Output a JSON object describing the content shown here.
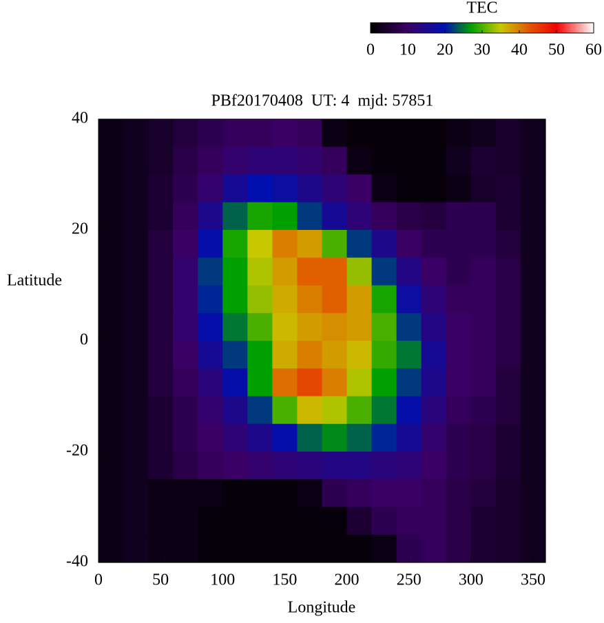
{
  "chart_data": {
    "type": "heatmap",
    "title": "PBf20170408  UT: 4  mjd: 57851",
    "x_label": "Longitude",
    "y_label": "Latitude",
    "xlim": [
      0,
      360
    ],
    "ylim": [
      -40,
      40
    ],
    "xticks": [
      0,
      50,
      100,
      150,
      200,
      250,
      300,
      350
    ],
    "yticks": [
      -40,
      -20,
      0,
      20,
      40
    ],
    "x": [
      10,
      30,
      50,
      70,
      90,
      110,
      130,
      150,
      170,
      190,
      210,
      230,
      250,
      270,
      290,
      310,
      330,
      350
    ],
    "y": [
      37.5,
      32.5,
      27.5,
      22.5,
      17.5,
      12.5,
      7.5,
      2.5,
      -2.5,
      -7.5,
      -12.5,
      -17.5,
      -22.5,
      -27.5,
      -32.5,
      -37.5
    ],
    "z": [
      [
        2,
        3,
        4,
        6,
        8,
        9,
        9,
        10,
        9,
        2,
        1,
        1,
        1,
        1,
        2,
        3,
        4,
        3
      ],
      [
        2,
        3,
        4,
        7,
        9,
        11,
        12,
        12,
        11,
        9,
        2,
        1,
        1,
        1,
        3,
        5,
        4,
        3
      ],
      [
        2,
        3,
        5,
        8,
        11,
        16,
        20,
        18,
        15,
        12,
        10,
        2,
        1,
        1,
        2,
        4,
        5,
        3
      ],
      [
        2,
        3,
        5,
        9,
        15,
        24,
        28,
        27,
        22,
        16,
        12,
        9,
        7,
        6,
        8,
        8,
        5,
        3
      ],
      [
        2,
        3,
        6,
        10,
        19,
        28,
        35,
        40,
        38,
        30,
        22,
        15,
        10,
        8,
        8,
        8,
        6,
        3
      ],
      [
        2,
        3,
        6,
        11,
        22,
        27,
        34,
        38,
        42,
        42,
        33,
        22,
        14,
        10,
        8,
        9,
        7,
        3
      ],
      [
        2,
        3,
        6,
        11,
        21,
        27,
        33,
        37,
        40,
        42,
        38,
        28,
        18,
        12,
        9,
        9,
        7,
        3
      ],
      [
        2,
        3,
        6,
        11,
        19,
        25,
        30,
        36,
        38,
        39,
        38,
        30,
        22,
        14,
        10,
        9,
        7,
        3
      ],
      [
        2,
        3,
        6,
        10,
        16,
        22,
        27,
        37,
        40,
        38,
        36,
        29,
        25,
        16,
        10,
        9,
        7,
        3
      ],
      [
        2,
        3,
        6,
        9,
        13,
        19,
        27,
        41,
        44,
        40,
        34,
        27,
        22,
        15,
        10,
        9,
        6,
        3
      ],
      [
        2,
        3,
        5,
        8,
        11,
        15,
        22,
        30,
        36,
        34,
        30,
        25,
        19,
        13,
        9,
        8,
        6,
        3
      ],
      [
        2,
        3,
        5,
        8,
        10,
        12,
        15,
        19,
        24,
        26,
        24,
        21,
        16,
        11,
        8,
        7,
        5,
        3
      ],
      [
        2,
        3,
        5,
        7,
        9,
        10,
        11,
        12,
        13,
        14,
        14,
        13,
        12,
        10,
        8,
        7,
        5,
        3
      ],
      [
        2,
        3,
        2,
        2,
        2,
        1,
        1,
        1,
        2,
        8,
        9,
        10,
        10,
        9,
        7,
        6,
        4,
        3
      ],
      [
        2,
        3,
        2,
        2,
        1,
        1,
        1,
        1,
        1,
        1,
        5,
        8,
        9,
        9,
        7,
        5,
        4,
        3
      ],
      [
        2,
        3,
        2,
        2,
        1,
        1,
        1,
        1,
        1,
        1,
        1,
        2,
        8,
        9,
        7,
        5,
        4,
        3
      ]
    ],
    "colorbar_label": "TEC",
    "clim": [
      0,
      60
    ],
    "colorbar_ticks": [
      0,
      10,
      20,
      30,
      40,
      50,
      60
    ],
    "colorscale": [
      {
        "value": 0,
        "color": "#000000"
      },
      {
        "value": 10,
        "color": "#3a0066"
      },
      {
        "value": 20,
        "color": "#0010b0"
      },
      {
        "value": 27,
        "color": "#00a000"
      },
      {
        "value": 35,
        "color": "#c8c800"
      },
      {
        "value": 42,
        "color": "#e06000"
      },
      {
        "value": 50,
        "color": "#f00000"
      },
      {
        "value": 60,
        "color": "#ffffff"
      }
    ]
  }
}
